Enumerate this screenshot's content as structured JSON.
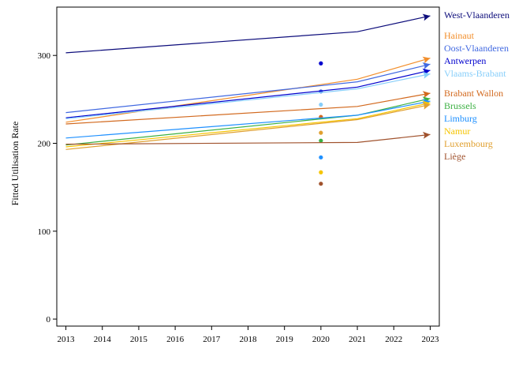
{
  "chart_data": {
    "type": "line",
    "title": "",
    "xlabel": "",
    "ylabel": "Fitted Utilisation Rate",
    "xlim": [
      2012.75,
      2023.25
    ],
    "ylim": [
      -8,
      355
    ],
    "x_ticks": [
      "2013",
      "2014",
      "2015",
      "2016",
      "2017",
      "2018",
      "2019",
      "2020",
      "2021",
      "2022",
      "2023"
    ],
    "y_ticks": [
      "0",
      "100",
      "200",
      "300"
    ],
    "grid": false,
    "legend": "right (labels at line ends)",
    "series": [
      {
        "name": "West-Vlaanderen",
        "color": "#0b0b7a",
        "x": [
          2013,
          2021,
          2023
        ],
        "y": [
          303,
          327,
          345
        ],
        "point_2020": null
      },
      {
        "name": "Hainaut",
        "color": "#f28e2b",
        "x": [
          2013,
          2021,
          2023
        ],
        "y": [
          224,
          273,
          297
        ],
        "point_2020": null
      },
      {
        "name": "Oost-Vlaanderen",
        "color": "#4169e1",
        "x": [
          2013,
          2021,
          2023
        ],
        "y": [
          235,
          270,
          290
        ],
        "point_2020": 259
      },
      {
        "name": "Antwerpen",
        "color": "#0000cd",
        "x": [
          2013,
          2021,
          2023
        ],
        "y": [
          229,
          264,
          283
        ],
        "point_2020": 291
      },
      {
        "name": "Vlaams-Brabant",
        "color": "#87cefa",
        "x": [
          2013,
          2021,
          2023
        ],
        "y": [
          228,
          262,
          279
        ],
        "point_2020": 244
      },
      {
        "name": "Brabant Wallon",
        "color": "#d2691e",
        "x": [
          2013,
          2021,
          2023
        ],
        "y": [
          222,
          242,
          257
        ],
        "point_2020": 230
      },
      {
        "name": "Brussels",
        "color": "#3cb043",
        "x": [
          2013,
          2021,
          2023
        ],
        "y": [
          198,
          232,
          251
        ],
        "point_2020": 203
      },
      {
        "name": "Limburg",
        "color": "#1e90ff",
        "x": [
          2013,
          2021,
          2023
        ],
        "y": [
          206,
          232,
          248
        ],
        "point_2020": 184
      },
      {
        "name": "Namur",
        "color": "#f5c400",
        "x": [
          2013,
          2021,
          2023
        ],
        "y": [
          196,
          228,
          246
        ],
        "point_2020": 167
      },
      {
        "name": "Luxembourg",
        "color": "#e0a030",
        "x": [
          2013,
          2021,
          2023
        ],
        "y": [
          193,
          227,
          244
        ],
        "point_2020": 212
      },
      {
        "name": "Liège",
        "color": "#a0522d",
        "x": [
          2013,
          2021,
          2023
        ],
        "y": [
          199,
          201,
          210
        ],
        "point_2020": 154
      }
    ]
  }
}
